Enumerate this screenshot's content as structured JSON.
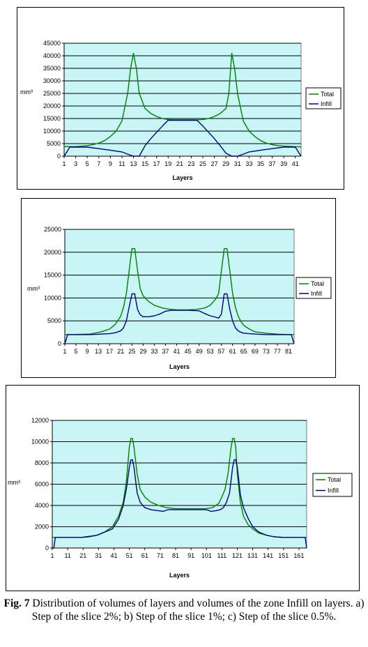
{
  "chart_data": [
    {
      "type": "line",
      "xlabel": "Layers",
      "ylabel": "mm³",
      "ylim": [
        0,
        45000
      ],
      "y_ticks": [
        0,
        5000,
        10000,
        15000,
        20000,
        25000,
        30000,
        35000,
        40000,
        45000
      ],
      "x_ticks": [
        "1",
        "3",
        "5",
        "7",
        "9",
        "11",
        "13",
        "15",
        "17",
        "19",
        "21",
        "23",
        "25",
        "27",
        "29",
        "31",
        "33",
        "35",
        "37",
        "39",
        "41"
      ],
      "xlim": [
        1,
        42
      ],
      "grid": true,
      "legend": "right",
      "series": [
        {
          "name": "Total",
          "color": "#008000",
          "x": [
            1,
            3,
            5,
            6,
            7,
            8,
            9,
            10,
            11,
            12,
            12.5,
            13,
            13.5,
            14,
            15,
            16,
            17,
            18,
            19,
            20,
            21,
            22,
            23,
            24,
            25,
            26,
            27,
            28,
            29,
            29.5,
            30,
            30.5,
            31,
            32,
            33,
            34,
            35,
            36,
            37,
            38,
            39,
            40,
            41,
            42
          ],
          "y": [
            3800,
            3800,
            4200,
            4600,
            5200,
            6200,
            7800,
            10000,
            14000,
            25000,
            35000,
            41000,
            35000,
            25000,
            19000,
            17000,
            15800,
            15000,
            14600,
            14500,
            14500,
            14500,
            14500,
            14500,
            14600,
            15000,
            15800,
            17000,
            19000,
            25000,
            41000,
            35000,
            25000,
            14000,
            10000,
            7800,
            6200,
            5200,
            4600,
            4200,
            4000,
            3900,
            3800,
            3700
          ]
        },
        {
          "name": "Infill",
          "color": "#000080",
          "x": [
            1,
            2,
            3,
            5,
            7,
            9,
            11,
            12,
            13,
            14,
            15,
            16,
            17,
            18,
            19,
            20,
            21,
            22,
            23,
            24,
            25,
            26,
            27,
            28,
            29,
            30,
            31,
            32,
            33,
            35,
            37,
            39,
            40,
            41,
            42
          ],
          "y": [
            0,
            3600,
            3600,
            3600,
            3000,
            2400,
            1700,
            800,
            0,
            0,
            4200,
            7000,
            9500,
            12000,
            14300,
            14300,
            14300,
            14300,
            14300,
            14300,
            12000,
            9500,
            7000,
            4200,
            1200,
            0,
            0,
            800,
            1700,
            2400,
            3000,
            3600,
            3600,
            3600,
            0
          ]
        }
      ]
    },
    {
      "type": "line",
      "xlabel": "Layers",
      "ylabel": "mm³",
      "ylim": [
        0,
        25000
      ],
      "y_ticks": [
        0,
        5000,
        10000,
        15000,
        20000,
        25000
      ],
      "x_ticks": [
        "1",
        "5",
        "9",
        "13",
        "17",
        "21",
        "25",
        "29",
        "33",
        "37",
        "41",
        "45",
        "49",
        "53",
        "57",
        "61",
        "65",
        "69",
        "73",
        "77",
        "81"
      ],
      "xlim": [
        1,
        83
      ],
      "grid": true,
      "legend": "right",
      "series": [
        {
          "name": "Total",
          "color": "#008000",
          "x": [
            1,
            3,
            10,
            14,
            17,
            19,
            21,
            22,
            23,
            24,
            25,
            26,
            27,
            28,
            29,
            30,
            31,
            33,
            36,
            39,
            41,
            45,
            48,
            51,
            53,
            55,
            56,
            57,
            58,
            59,
            60,
            61,
            62,
            63,
            64,
            65,
            67,
            69,
            73,
            77,
            81,
            83
          ],
          "y": [
            2000,
            2000,
            2100,
            2600,
            3200,
            4200,
            6000,
            8000,
            11000,
            16000,
            20800,
            20800,
            16000,
            12000,
            10500,
            9800,
            9200,
            8400,
            7800,
            7500,
            7400,
            7400,
            7500,
            7800,
            8400,
            9800,
            11000,
            16000,
            20800,
            20800,
            16000,
            11000,
            8000,
            6000,
            4800,
            4000,
            3200,
            2600,
            2300,
            2100,
            2000,
            2000
          ]
        },
        {
          "name": "Infill",
          "color": "#000080",
          "x": [
            1,
            2,
            3,
            10,
            14,
            17,
            19,
            21,
            22,
            23,
            24,
            25,
            26,
            27,
            28,
            29,
            31,
            33,
            35,
            37,
            39,
            45,
            49,
            51,
            53,
            55,
            56,
            57,
            58,
            59,
            60,
            61,
            62,
            63,
            64,
            65,
            67,
            69,
            73,
            77,
            81,
            82,
            83
          ],
          "y": [
            0,
            2000,
            2000,
            2000,
            2100,
            2200,
            2400,
            2800,
            3500,
            5000,
            8000,
            10900,
            10900,
            7500,
            6300,
            5900,
            5900,
            6100,
            6500,
            7100,
            7300,
            7300,
            7200,
            6600,
            6100,
            5800,
            5600,
            6500,
            10900,
            10900,
            7500,
            5000,
            3500,
            2800,
            2500,
            2300,
            2200,
            2100,
            2000,
            2000,
            2000,
            2000,
            0
          ]
        }
      ]
    },
    {
      "type": "line",
      "xlabel": "Layers",
      "ylabel": "mm³",
      "ylim": [
        0,
        12000
      ],
      "y_ticks": [
        0,
        2000,
        4000,
        6000,
        8000,
        10000,
        12000
      ],
      "x_ticks": [
        "1",
        "11",
        "21",
        "31",
        "41",
        "51",
        "61",
        "71",
        "81",
        "91",
        "101",
        "111",
        "121",
        "131",
        "141",
        "151",
        "161"
      ],
      "xlim": [
        1,
        166
      ],
      "grid": true,
      "legend": "right",
      "series": [
        {
          "name": "Total",
          "color": "#008000",
          "x": [
            1,
            2,
            10,
            20,
            25,
            30,
            35,
            40,
            44,
            47,
            49,
            51,
            52,
            53,
            54,
            56,
            58,
            61,
            65,
            70,
            75,
            81,
            91,
            101,
            105,
            109,
            111,
            113,
            115,
            117,
            118,
            119,
            120,
            121,
            123,
            125,
            128,
            131,
            135,
            140,
            145,
            151,
            161,
            166
          ],
          "y": [
            1000,
            1000,
            1000,
            1000,
            1050,
            1200,
            1500,
            2000,
            3000,
            4300,
            6200,
            9500,
            10300,
            10300,
            9500,
            7000,
            5500,
            4800,
            4300,
            4000,
            3800,
            3700,
            3700,
            3700,
            3800,
            4200,
            4800,
            5500,
            7000,
            9500,
            10300,
            10300,
            9500,
            7000,
            4300,
            3000,
            2200,
            1800,
            1400,
            1200,
            1050,
            1000,
            1000,
            1000
          ]
        },
        {
          "name": "Infill",
          "color": "#000080",
          "x": [
            1,
            2,
            3,
            10,
            20,
            30,
            40,
            44,
            47,
            49,
            51,
            52,
            53,
            54,
            56,
            58,
            61,
            65,
            70,
            73,
            76,
            81,
            91,
            101,
            104,
            107,
            110,
            112,
            114,
            116,
            118,
            119,
            120,
            121,
            123,
            125,
            128,
            131,
            135,
            140,
            145,
            151,
            161,
            164,
            165,
            166
          ],
          "y": [
            0,
            0,
            1000,
            1000,
            1000,
            1200,
            1800,
            2700,
            4000,
            5500,
            7600,
            8300,
            8300,
            7600,
            5200,
            4300,
            3800,
            3600,
            3500,
            3450,
            3600,
            3600,
            3600,
            3600,
            3450,
            3500,
            3600,
            3800,
            4300,
            5200,
            7600,
            8300,
            8300,
            7600,
            5000,
            3800,
            2800,
            2000,
            1500,
            1200,
            1050,
            1000,
            1000,
            1000,
            1000,
            0
          ]
        }
      ]
    }
  ],
  "caption": {
    "label": "Fig. 7",
    "text": " Distribution of volumes of layers and volumes of the zone Infill on layers. a) Step of the slice 2%; b) Step of the slice 1%; c) Step of the slice 0.5%."
  },
  "colors": {
    "plot_bg": "#c8f5f5",
    "grid": "#000000",
    "total": "#008000",
    "infill": "#000080"
  }
}
